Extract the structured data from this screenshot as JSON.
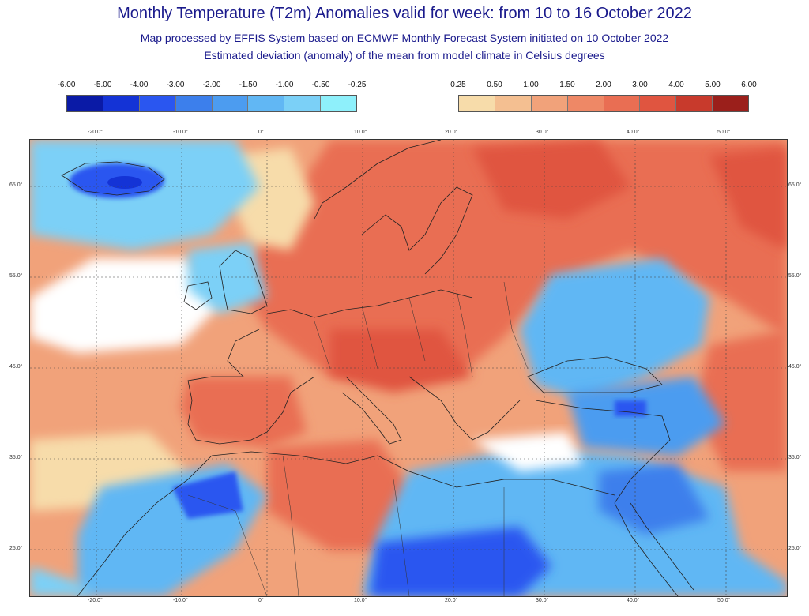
{
  "title": "Monthly Temperature (T2m) Anomalies valid for week: from 10 to 16 October 2022",
  "subtitle1": "Map processed by EFFIS System based on ECMWF Monthly Forecast System initiated on 10 October 2022",
  "subtitle2": "Estimated deviation (anomaly) of the mean from model climate in Celsius degrees",
  "legend_cold": {
    "labels": [
      "-6.00",
      "-5.00",
      "-4.00",
      "-3.00",
      "-2.00",
      "-1.50",
      "-1.00",
      "-0.50",
      "-0.25"
    ],
    "colors": [
      "#0a1aa6",
      "#1433d6",
      "#2a56f0",
      "#3c7fec",
      "#4c9cf0",
      "#61b7f4",
      "#7bd0f7",
      "#8ef0fb"
    ]
  },
  "legend_warm": {
    "labels": [
      "0.25",
      "0.50",
      "1.00",
      "1.50",
      "2.00",
      "3.00",
      "4.00",
      "5.00",
      "6.00"
    ],
    "colors": [
      "#f7dcaa",
      "#f4bf91",
      "#f1a27a",
      "#ee8866",
      "#e96e53",
      "#e05540",
      "#c83a2c",
      "#9b1f1b"
    ]
  },
  "lon_labels": [
    "-20.0°",
    "-10.0°",
    "0°",
    "10.0°",
    "20.0°",
    "30.0°",
    "40.0°",
    "50.0°"
  ],
  "lat_labels": [
    "65.0°",
    "55.0°",
    "45.0°",
    "35.0°",
    "25.0°"
  ]
}
